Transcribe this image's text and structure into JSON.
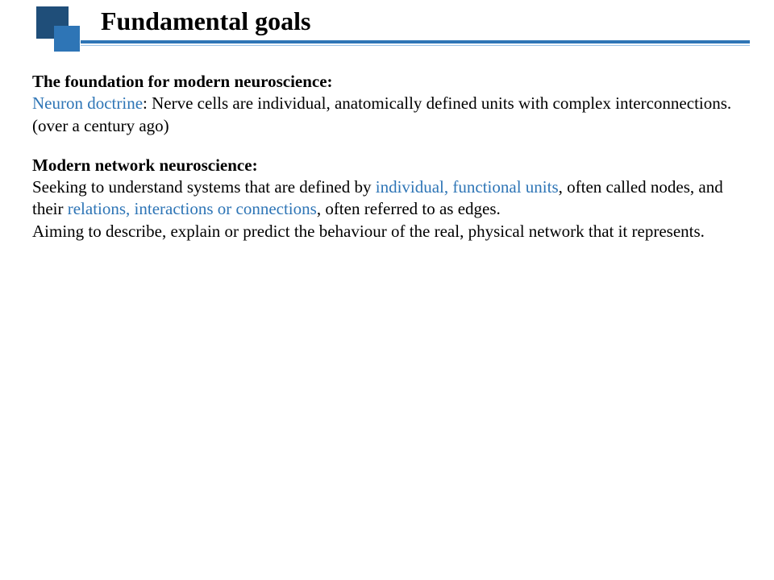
{
  "colors": {
    "square_dark": "#1f4e79",
    "square_light": "#2e75b6",
    "rule_main": "#2e75b6",
    "rule_shadow": "#9cc3e6",
    "highlight": "#2e75b6",
    "text": "#000000",
    "background": "#ffffff"
  },
  "typography": {
    "title_fontsize": 32,
    "body_fontsize": 21,
    "font_family": "Times New Roman"
  },
  "title": "Fundamental goals",
  "section1": {
    "heading": "The foundation for modern neuroscience:",
    "highlight": "Neuron doctrine",
    "rest": ": Nerve cells are individual, anatomically defined units with complex interconnections. (over a century ago)"
  },
  "section2": {
    "heading": "Modern network neuroscience:",
    "p1_a": "Seeking to understand systems that are defined by ",
    "p1_hl1": "individual, functional units",
    "p1_b": ", often called nodes, and their ",
    "p1_hl2": "relations, interactions or connections",
    "p1_c": ", often referred to as edges.",
    "p2": "Aiming to describe, explain or predict the behaviour of the real, physical network that it represents."
  }
}
